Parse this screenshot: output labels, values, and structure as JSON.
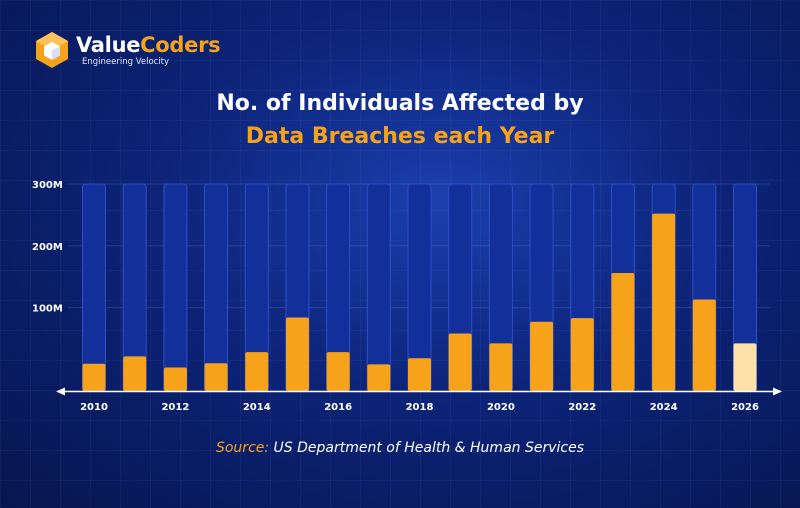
{
  "brand": {
    "name_part1": "Value",
    "name_part2": "Coders",
    "tagline": "Engineering Velocity",
    "accent_color": "#f7a21b"
  },
  "title": {
    "line1": "No. of Individuals Affected by",
    "line2": "Data Breaches each Year"
  },
  "source": {
    "label": "Source:",
    "text": "US Department of Health & Human Services"
  },
  "chart_data": {
    "type": "bar",
    "categories": [
      "2010",
      "2011",
      "2012",
      "2013",
      "2014",
      "2015",
      "2016",
      "2017",
      "2018",
      "2019",
      "2020",
      "2021",
      "2022",
      "2023",
      "2024",
      "2025",
      "2026"
    ],
    "values": [
      9,
      21,
      3,
      10,
      28,
      84,
      28,
      8,
      18,
      58,
      42,
      77,
      83,
      156,
      252,
      113,
      42
    ],
    "highlight_index": 16,
    "xticks": [
      "2010",
      "2012",
      "2014",
      "2016",
      "2018",
      "2020",
      "2022",
      "2024",
      "2026"
    ],
    "yticks": [
      100,
      200,
      300
    ],
    "ytick_labels": [
      "100M",
      "200M",
      "300M"
    ],
    "ylim": [
      -35,
      300
    ],
    "grid": true,
    "colors": {
      "bar": "#f7a21b",
      "bar_highlight": "#ffe0a8",
      "track": "#13309a",
      "track_border": "#2c50c8",
      "axis": "#ffffff",
      "tick_label": "#ffffff"
    }
  }
}
